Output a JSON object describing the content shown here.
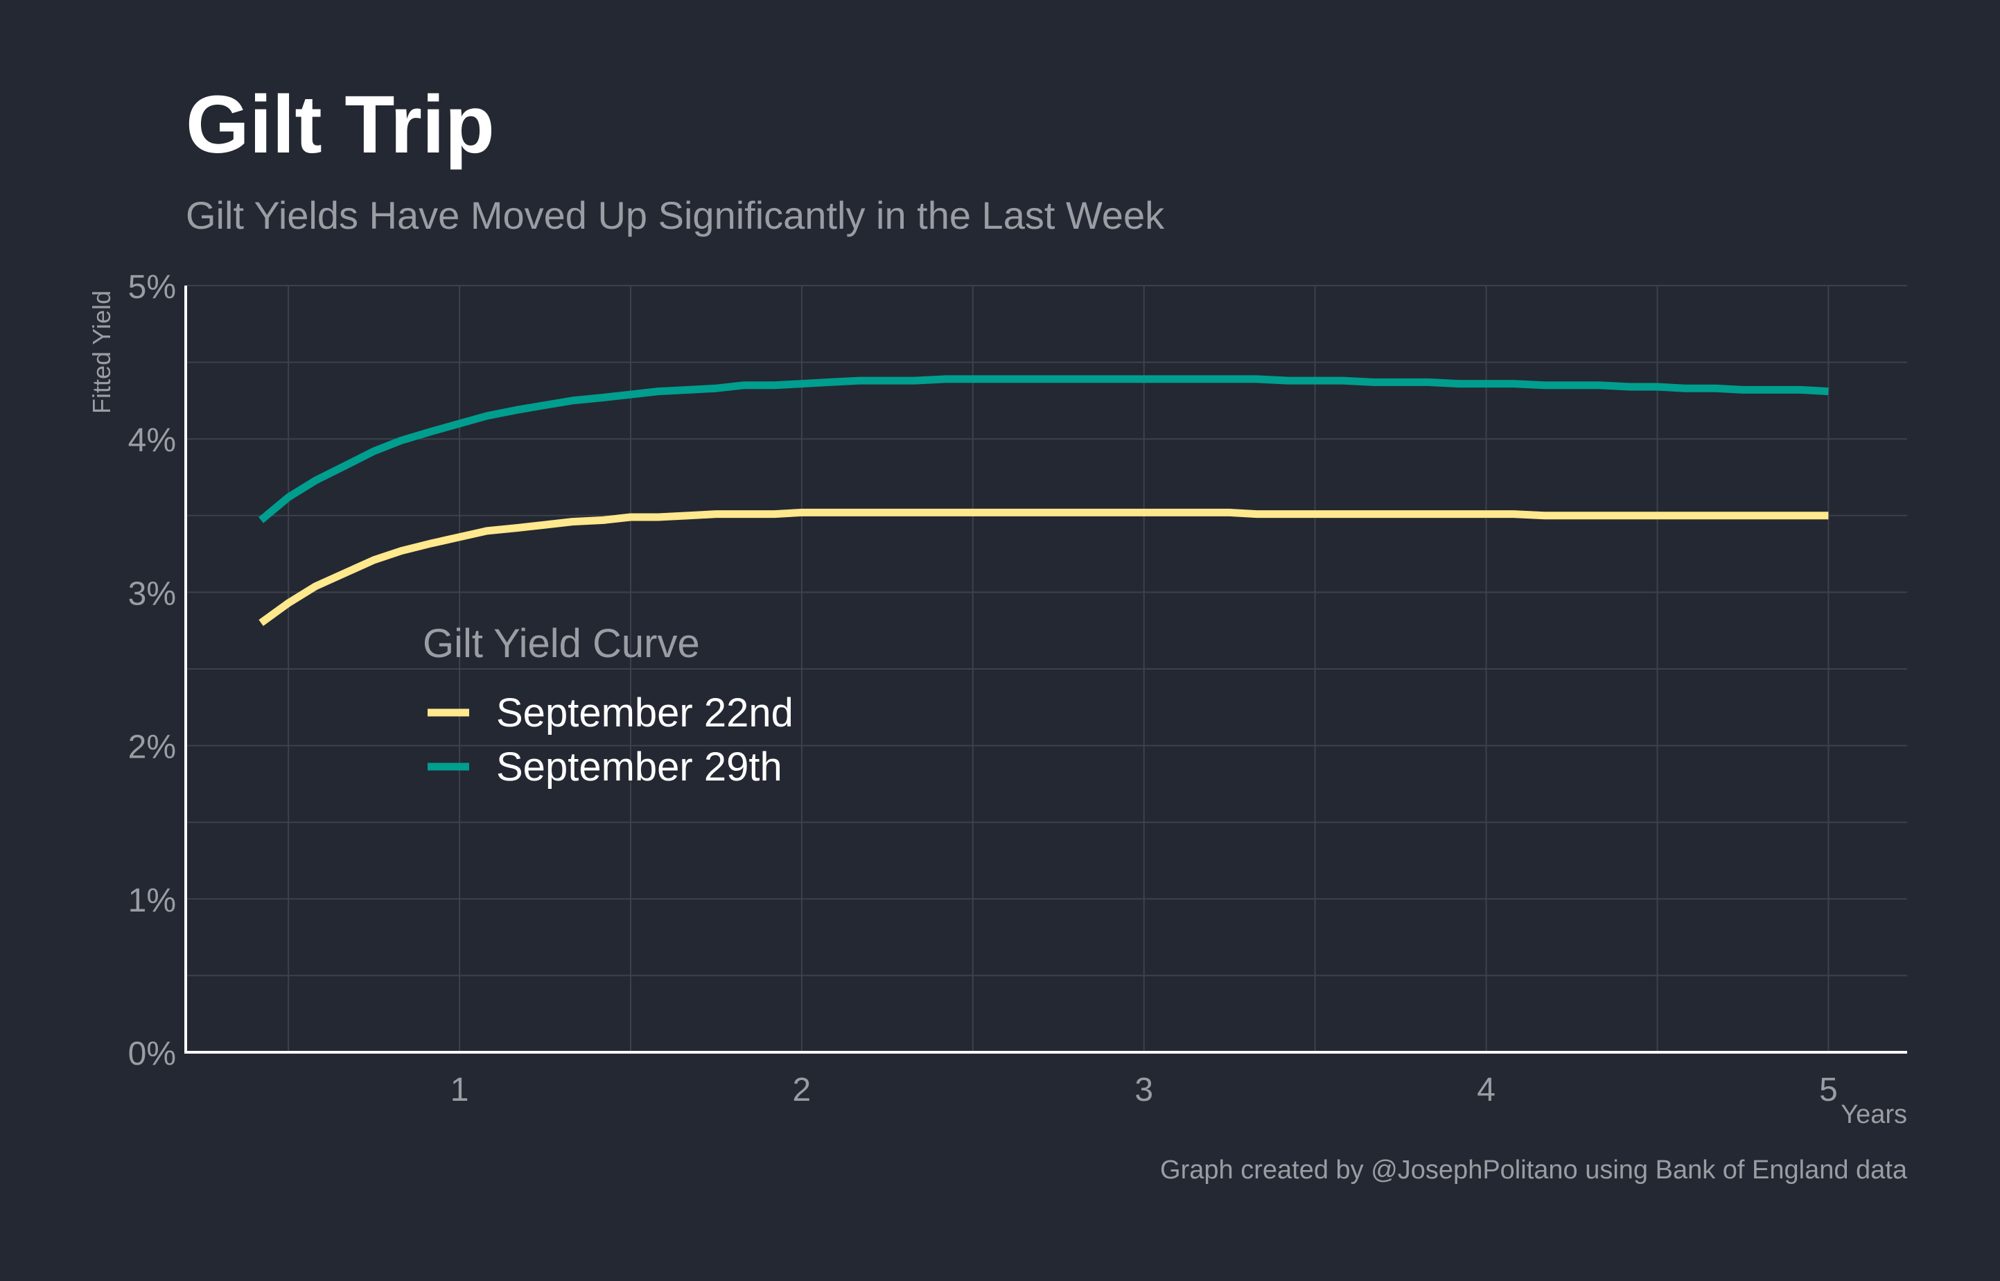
{
  "chart_data": {
    "type": "line",
    "title": "Gilt Trip",
    "subtitle": "Gilt Yields Have Moved Up Significantly in the Last Week",
    "xlabel": "Years",
    "ylabel": "Fitted Yield",
    "caption": "Graph created by @JosephPolitano using Bank of England data",
    "xlim": [
      0.2,
      5.23
    ],
    "ylim": [
      0,
      5
    ],
    "x_ticks": [
      1,
      2,
      3,
      4,
      5
    ],
    "x_tick_labels": [
      "1",
      "2",
      "3",
      "4",
      "5"
    ],
    "y_ticks": [
      0,
      1,
      2,
      3,
      4,
      5
    ],
    "y_tick_labels": [
      "0%",
      "1%",
      "2%",
      "3%",
      "4%",
      "5%"
    ],
    "grid": true,
    "legend": {
      "title": "Gilt Yield Curve",
      "position": "inside-left"
    },
    "series": [
      {
        "name": "September 22nd",
        "color": "#FFE88D",
        "x": [
          0.42,
          0.5,
          0.58,
          0.67,
          0.75,
          0.83,
          0.92,
          1.0,
          1.08,
          1.17,
          1.25,
          1.33,
          1.42,
          1.5,
          1.58,
          1.67,
          1.75,
          1.83,
          1.92,
          2.0,
          2.08,
          2.17,
          2.25,
          2.33,
          2.42,
          2.5,
          2.58,
          2.67,
          2.75,
          2.83,
          2.92,
          3.0,
          3.08,
          3.17,
          3.25,
          3.33,
          3.42,
          3.5,
          3.58,
          3.67,
          3.75,
          3.83,
          3.92,
          4.0,
          4.08,
          4.17,
          4.25,
          4.33,
          4.42,
          4.5,
          4.58,
          4.67,
          4.75,
          4.83,
          4.92,
          5.0
        ],
        "y": [
          2.8,
          2.93,
          3.04,
          3.13,
          3.21,
          3.27,
          3.32,
          3.36,
          3.4,
          3.42,
          3.44,
          3.46,
          3.47,
          3.49,
          3.49,
          3.5,
          3.51,
          3.51,
          3.51,
          3.52,
          3.52,
          3.52,
          3.52,
          3.52,
          3.52,
          3.52,
          3.52,
          3.52,
          3.52,
          3.52,
          3.52,
          3.52,
          3.52,
          3.52,
          3.52,
          3.51,
          3.51,
          3.51,
          3.51,
          3.51,
          3.51,
          3.51,
          3.51,
          3.51,
          3.51,
          3.5,
          3.5,
          3.5,
          3.5,
          3.5,
          3.5,
          3.5,
          3.5,
          3.5,
          3.5,
          3.5
        ]
      },
      {
        "name": "September 29th",
        "color": "#009E8E",
        "x": [
          0.42,
          0.5,
          0.58,
          0.67,
          0.75,
          0.83,
          0.92,
          1.0,
          1.08,
          1.17,
          1.25,
          1.33,
          1.42,
          1.5,
          1.58,
          1.67,
          1.75,
          1.83,
          1.92,
          2.0,
          2.08,
          2.17,
          2.25,
          2.33,
          2.42,
          2.5,
          2.58,
          2.67,
          2.75,
          2.83,
          2.92,
          3.0,
          3.08,
          3.17,
          3.25,
          3.33,
          3.42,
          3.5,
          3.58,
          3.67,
          3.75,
          3.83,
          3.92,
          4.0,
          4.08,
          4.17,
          4.25,
          4.33,
          4.42,
          4.5,
          4.58,
          4.67,
          4.75,
          4.83,
          4.92,
          5.0
        ],
        "y": [
          3.47,
          3.62,
          3.73,
          3.83,
          3.92,
          3.99,
          4.05,
          4.1,
          4.15,
          4.19,
          4.22,
          4.25,
          4.27,
          4.29,
          4.31,
          4.32,
          4.33,
          4.35,
          4.35,
          4.36,
          4.37,
          4.38,
          4.38,
          4.38,
          4.39,
          4.39,
          4.39,
          4.39,
          4.39,
          4.39,
          4.39,
          4.39,
          4.39,
          4.39,
          4.39,
          4.39,
          4.38,
          4.38,
          4.38,
          4.37,
          4.37,
          4.37,
          4.36,
          4.36,
          4.36,
          4.35,
          4.35,
          4.35,
          4.34,
          4.34,
          4.33,
          4.33,
          4.32,
          4.32,
          4.32,
          4.31
        ]
      }
    ]
  },
  "colors": {
    "background": "#242832",
    "grid": "#3C414B",
    "axis": "#FFFFFF",
    "title": "#FFFFFF",
    "muted_text": "#9A9DA3",
    "legend_text": "#FFFFFF"
  }
}
